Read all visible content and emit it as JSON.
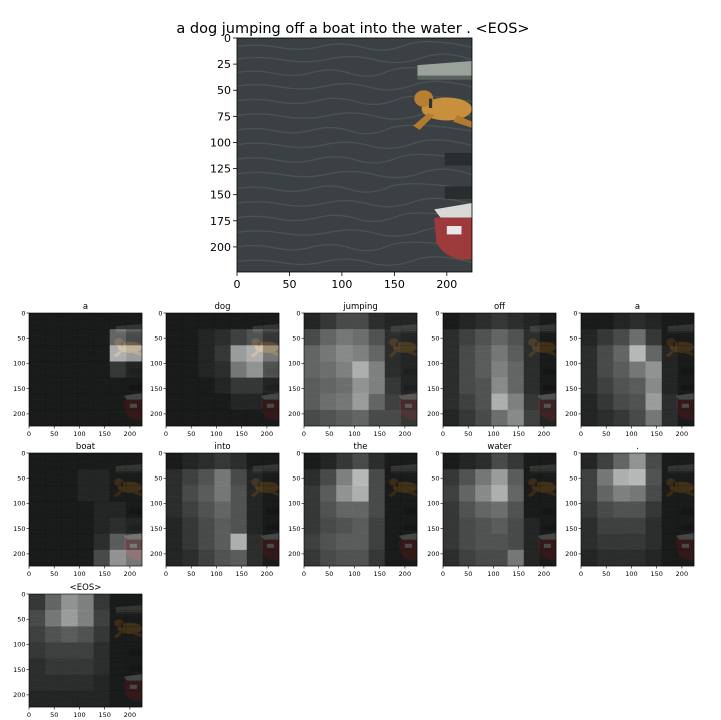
{
  "caption": "a dog jumping off a boat into the water . <EOS>",
  "colors": {
    "water_dark": "#2f3335",
    "water_light": "#4d5457",
    "dog": "#c8903c",
    "dock": "#9aa29c",
    "boat_red": "#9c3a3c",
    "boat_white": "#dcdcdc",
    "attention_high": "#ffffff",
    "attention_low": "#000000"
  },
  "chart_data": {
    "type": "heatmap",
    "grid": "7x7",
    "main_image": {
      "xticks": [
        "0",
        "50",
        "100",
        "150",
        "200"
      ],
      "yticks": [
        "0",
        "25",
        "50",
        "75",
        "100",
        "125",
        "150",
        "175",
        "200"
      ],
      "xlim": [
        0,
        224
      ],
      "ylim": [
        224,
        0
      ]
    },
    "small_axes": {
      "xticks": [
        "0",
        "50",
        "100",
        "150",
        "200"
      ],
      "yticks": [
        "0",
        "50",
        "100",
        "150",
        "200"
      ]
    },
    "attention_maps": [
      {
        "word": "a",
        "weights": [
          [
            0.05,
            0.05,
            0.05,
            0.05,
            0.05,
            0.05,
            0.05
          ],
          [
            0.05,
            0.05,
            0.05,
            0.05,
            0.05,
            0.45,
            0.3
          ],
          [
            0.05,
            0.05,
            0.05,
            0.05,
            0.05,
            0.85,
            0.75
          ],
          [
            0.05,
            0.05,
            0.05,
            0.05,
            0.05,
            0.2,
            0.1
          ],
          [
            0.05,
            0.05,
            0.05,
            0.05,
            0.05,
            0.05,
            0.05
          ],
          [
            0.05,
            0.05,
            0.05,
            0.05,
            0.05,
            0.05,
            0.05
          ],
          [
            0.05,
            0.05,
            0.05,
            0.05,
            0.05,
            0.05,
            0.05
          ]
        ]
      },
      {
        "word": "dog",
        "weights": [
          [
            0.05,
            0.05,
            0.05,
            0.05,
            0.05,
            0.05,
            0.05
          ],
          [
            0.05,
            0.05,
            0.1,
            0.15,
            0.25,
            0.35,
            0.2
          ],
          [
            0.05,
            0.05,
            0.1,
            0.2,
            0.75,
            0.85,
            0.55
          ],
          [
            0.05,
            0.05,
            0.1,
            0.15,
            0.55,
            0.7,
            0.35
          ],
          [
            0.05,
            0.05,
            0.05,
            0.1,
            0.2,
            0.2,
            0.1
          ],
          [
            0.05,
            0.05,
            0.05,
            0.05,
            0.1,
            0.1,
            0.05
          ],
          [
            0.05,
            0.05,
            0.05,
            0.05,
            0.05,
            0.05,
            0.05
          ]
        ]
      },
      {
        "word": "jumping",
        "weights": [
          [
            0.1,
            0.2,
            0.3,
            0.3,
            0.15,
            0.1,
            0.1
          ],
          [
            0.3,
            0.45,
            0.55,
            0.5,
            0.35,
            0.15,
            0.1
          ],
          [
            0.45,
            0.55,
            0.65,
            0.6,
            0.45,
            0.15,
            0.1
          ],
          [
            0.45,
            0.5,
            0.6,
            0.85,
            0.6,
            0.15,
            0.1
          ],
          [
            0.4,
            0.45,
            0.5,
            0.7,
            0.6,
            0.2,
            0.1
          ],
          [
            0.4,
            0.5,
            0.55,
            0.75,
            0.45,
            0.25,
            0.15
          ],
          [
            0.3,
            0.35,
            0.4,
            0.45,
            0.3,
            0.3,
            0.2
          ]
        ]
      },
      {
        "word": "off",
        "weights": [
          [
            0.05,
            0.1,
            0.15,
            0.2,
            0.15,
            0.1,
            0.05
          ],
          [
            0.15,
            0.25,
            0.35,
            0.45,
            0.35,
            0.15,
            0.05
          ],
          [
            0.15,
            0.3,
            0.4,
            0.55,
            0.4,
            0.15,
            0.05
          ],
          [
            0.15,
            0.3,
            0.4,
            0.6,
            0.45,
            0.15,
            0.05
          ],
          [
            0.15,
            0.3,
            0.35,
            0.65,
            0.45,
            0.15,
            0.05
          ],
          [
            0.15,
            0.25,
            0.35,
            0.85,
            0.6,
            0.2,
            0.1
          ],
          [
            0.1,
            0.2,
            0.3,
            0.5,
            0.65,
            0.25,
            0.1
          ]
        ]
      },
      {
        "word": "a",
        "weights": [
          [
            0.05,
            0.05,
            0.1,
            0.15,
            0.1,
            0.05,
            0.05
          ],
          [
            0.1,
            0.2,
            0.3,
            0.5,
            0.2,
            0.05,
            0.05
          ],
          [
            0.15,
            0.3,
            0.45,
            0.9,
            0.45,
            0.1,
            0.05
          ],
          [
            0.15,
            0.3,
            0.4,
            0.55,
            0.7,
            0.1,
            0.05
          ],
          [
            0.15,
            0.25,
            0.35,
            0.4,
            0.65,
            0.1,
            0.05
          ],
          [
            0.1,
            0.2,
            0.3,
            0.35,
            0.75,
            0.15,
            0.05
          ],
          [
            0.1,
            0.15,
            0.2,
            0.3,
            0.55,
            0.15,
            0.05
          ]
        ]
      },
      {
        "word": "boat",
        "weights": [
          [
            0.05,
            0.05,
            0.05,
            0.05,
            0.05,
            0.05,
            0.05
          ],
          [
            0.05,
            0.05,
            0.05,
            0.1,
            0.1,
            0.05,
            0.05
          ],
          [
            0.05,
            0.05,
            0.05,
            0.1,
            0.1,
            0.05,
            0.05
          ],
          [
            0.05,
            0.05,
            0.05,
            0.05,
            0.1,
            0.1,
            0.05
          ],
          [
            0.05,
            0.05,
            0.05,
            0.05,
            0.1,
            0.15,
            0.1
          ],
          [
            0.05,
            0.05,
            0.05,
            0.05,
            0.15,
            0.4,
            0.3
          ],
          [
            0.05,
            0.05,
            0.05,
            0.05,
            0.3,
            0.7,
            0.55
          ]
        ]
      },
      {
        "word": "into",
        "weights": [
          [
            0.05,
            0.1,
            0.15,
            0.2,
            0.15,
            0.05,
            0.05
          ],
          [
            0.15,
            0.25,
            0.35,
            0.55,
            0.3,
            0.1,
            0.05
          ],
          [
            0.15,
            0.3,
            0.4,
            0.55,
            0.35,
            0.1,
            0.05
          ],
          [
            0.15,
            0.25,
            0.35,
            0.45,
            0.35,
            0.1,
            0.05
          ],
          [
            0.1,
            0.2,
            0.3,
            0.4,
            0.35,
            0.1,
            0.05
          ],
          [
            0.1,
            0.2,
            0.3,
            0.4,
            0.85,
            0.15,
            0.05
          ],
          [
            0.1,
            0.15,
            0.25,
            0.35,
            0.4,
            0.15,
            0.05
          ]
        ]
      },
      {
        "word": "the",
        "weights": [
          [
            0.05,
            0.1,
            0.2,
            0.3,
            0.15,
            0.05,
            0.05
          ],
          [
            0.15,
            0.3,
            0.6,
            0.9,
            0.3,
            0.05,
            0.05
          ],
          [
            0.2,
            0.4,
            0.7,
            0.85,
            0.3,
            0.05,
            0.05
          ],
          [
            0.2,
            0.35,
            0.45,
            0.45,
            0.3,
            0.05,
            0.05
          ],
          [
            0.2,
            0.3,
            0.35,
            0.4,
            0.25,
            0.05,
            0.05
          ],
          [
            0.25,
            0.35,
            0.4,
            0.4,
            0.25,
            0.05,
            0.05
          ],
          [
            0.2,
            0.3,
            0.35,
            0.35,
            0.2,
            0.05,
            0.05
          ]
        ]
      },
      {
        "word": "water",
        "weights": [
          [
            0.05,
            0.1,
            0.15,
            0.3,
            0.2,
            0.05,
            0.05
          ],
          [
            0.2,
            0.35,
            0.55,
            0.75,
            0.4,
            0.05,
            0.05
          ],
          [
            0.25,
            0.45,
            0.65,
            0.85,
            0.45,
            0.05,
            0.05
          ],
          [
            0.2,
            0.35,
            0.45,
            0.5,
            0.35,
            0.05,
            0.05
          ],
          [
            0.2,
            0.3,
            0.35,
            0.4,
            0.3,
            0.1,
            0.05
          ],
          [
            0.2,
            0.3,
            0.35,
            0.35,
            0.3,
            0.1,
            0.05
          ],
          [
            0.15,
            0.25,
            0.3,
            0.3,
            0.55,
            0.1,
            0.05
          ]
        ]
      },
      {
        "word": ".",
        "weights": [
          [
            0.1,
            0.25,
            0.45,
            0.7,
            0.3,
            0.05,
            0.05
          ],
          [
            0.25,
            0.55,
            0.85,
            0.9,
            0.35,
            0.05,
            0.05
          ],
          [
            0.25,
            0.45,
            0.6,
            0.55,
            0.3,
            0.05,
            0.05
          ],
          [
            0.2,
            0.3,
            0.35,
            0.35,
            0.2,
            0.05,
            0.05
          ],
          [
            0.15,
            0.25,
            0.25,
            0.25,
            0.15,
            0.05,
            0.05
          ],
          [
            0.15,
            0.2,
            0.2,
            0.2,
            0.15,
            0.05,
            0.05
          ],
          [
            0.1,
            0.15,
            0.15,
            0.15,
            0.1,
            0.05,
            0.05
          ]
        ]
      },
      {
        "word": "<EOS>",
        "weights": [
          [
            0.2,
            0.45,
            0.7,
            0.6,
            0.2,
            0.05,
            0.05
          ],
          [
            0.3,
            0.55,
            0.75,
            0.6,
            0.25,
            0.05,
            0.05
          ],
          [
            0.25,
            0.35,
            0.4,
            0.35,
            0.2,
            0.05,
            0.05
          ],
          [
            0.2,
            0.25,
            0.25,
            0.25,
            0.15,
            0.05,
            0.05
          ],
          [
            0.15,
            0.2,
            0.2,
            0.2,
            0.15,
            0.05,
            0.05
          ],
          [
            0.15,
            0.15,
            0.15,
            0.15,
            0.1,
            0.05,
            0.05
          ],
          [
            0.1,
            0.1,
            0.1,
            0.1,
            0.1,
            0.05,
            0.05
          ]
        ]
      }
    ]
  }
}
